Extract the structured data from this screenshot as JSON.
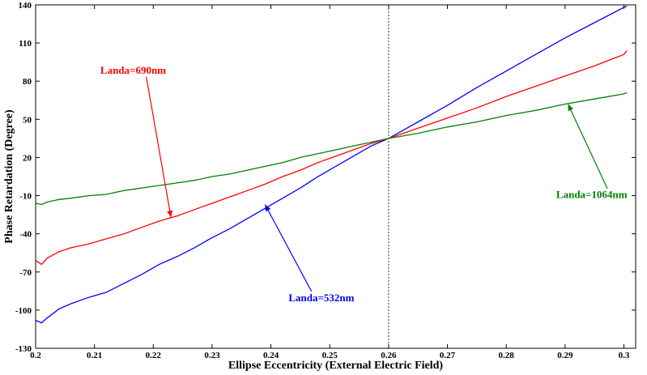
{
  "chart_data": {
    "type": "line",
    "title": "",
    "xlabel": "Ellipse Eccentricity (External Electric Field)",
    "ylabel": "Phase Retardation (Degree)",
    "xlim": [
      0.2,
      0.302
    ],
    "ylim": [
      -130,
      140
    ],
    "xticks": [
      0.2,
      0.21,
      0.22,
      0.23,
      0.24,
      0.25,
      0.26,
      0.27,
      0.28,
      0.29,
      0.3
    ],
    "xtick_labels": [
      "0.2",
      "0.21",
      "0.22",
      "0.23",
      "0.24",
      "0.25",
      "0.26",
      "0.27",
      "0.28",
      "0.29",
      "0.3"
    ],
    "yticks": [
      -130,
      -100,
      -70,
      -40,
      -10,
      20,
      50,
      80,
      110,
      140
    ],
    "ytick_labels": [
      "-130",
      "-100",
      "-70",
      "-40",
      "-10",
      "20",
      "50",
      "80",
      "110",
      "140"
    ],
    "grid": false,
    "reference_line_x": 0.26,
    "series": [
      {
        "name": "Landa=532nm",
        "color": "#0000ff",
        "x": [
          0.2,
          0.201,
          0.202,
          0.204,
          0.206,
          0.209,
          0.212,
          0.215,
          0.218,
          0.221,
          0.224,
          0.227,
          0.23,
          0.233,
          0.236,
          0.239,
          0.242,
          0.245,
          0.248,
          0.251,
          0.254,
          0.257,
          0.26,
          0.265,
          0.27,
          0.275,
          0.28,
          0.285,
          0.29,
          0.295,
          0.3,
          0.3005
        ],
        "y": [
          -108,
          -110,
          -106,
          -99,
          -95,
          -90,
          -86,
          -79,
          -72,
          -64,
          -58,
          -51,
          -43,
          -36,
          -28,
          -20,
          -12,
          -4,
          5,
          13,
          21,
          29,
          35,
          48,
          61,
          75,
          88,
          101,
          114,
          126,
          138,
          139
        ]
      },
      {
        "name": "Landa=690nm",
        "color": "#ff0000",
        "x": [
          0.2,
          0.201,
          0.202,
          0.204,
          0.206,
          0.209,
          0.212,
          0.215,
          0.218,
          0.221,
          0.224,
          0.227,
          0.23,
          0.233,
          0.236,
          0.239,
          0.242,
          0.245,
          0.248,
          0.251,
          0.254,
          0.257,
          0.26,
          0.265,
          0.27,
          0.275,
          0.28,
          0.285,
          0.29,
          0.295,
          0.3,
          0.3005
        ],
        "y": [
          -61,
          -64,
          -59,
          -54,
          -51,
          -48,
          -44,
          -40,
          -35,
          -30,
          -26,
          -21,
          -16,
          -11,
          -6,
          -1,
          5,
          10,
          16,
          21,
          26,
          31,
          35,
          43,
          51,
          59,
          68,
          76,
          84,
          92,
          101,
          104
        ]
      },
      {
        "name": "Landa=1064nm",
        "color": "#008000",
        "x": [
          0.2,
          0.201,
          0.202,
          0.204,
          0.206,
          0.209,
          0.212,
          0.215,
          0.218,
          0.221,
          0.224,
          0.227,
          0.23,
          0.233,
          0.236,
          0.239,
          0.242,
          0.245,
          0.248,
          0.251,
          0.254,
          0.257,
          0.26,
          0.265,
          0.27,
          0.275,
          0.28,
          0.285,
          0.29,
          0.295,
          0.3,
          0.3005
        ],
        "y": [
          -16,
          -17,
          -15,
          -13,
          -12,
          -10,
          -9,
          -6,
          -4,
          -2,
          0,
          2,
          5,
          7,
          10,
          13,
          16,
          20,
          23,
          26,
          29,
          32,
          35,
          39,
          44,
          48,
          53,
          57,
          62,
          66,
          70,
          71
        ]
      }
    ],
    "annotations": [
      {
        "text": "Landa=690nm",
        "color": "#ff0000",
        "text_x": 0.211,
        "text_y": 86,
        "arrow_to": [
          0.223,
          -27
        ]
      },
      {
        "text": "Landa=532nm",
        "color": "#0000ff",
        "text_x": 0.243,
        "text_y": -93,
        "arrow_to": [
          0.239,
          -17
        ]
      },
      {
        "text": "Landa=1064nm",
        "color": "#008000",
        "text_x": 0.2885,
        "text_y": -12,
        "arrow_to": [
          0.2905,
          62
        ]
      }
    ]
  }
}
